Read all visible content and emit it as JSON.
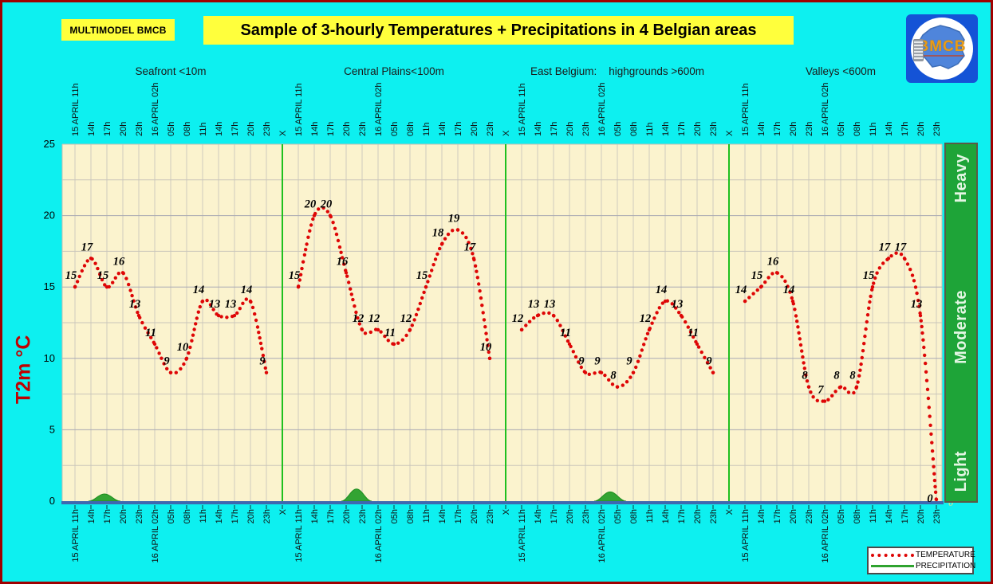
{
  "header": {
    "model_tag": "MULTIMODEL BMCB",
    "title": "Sample of 3-hourly Temperatures + Precipitations in 4 Belgian areas",
    "logo_text": "BMCB"
  },
  "colors": {
    "background": "#0DF0F0",
    "frame_border": "#A00000",
    "banner_bg": "#FFFF3C",
    "plot_bg": "#FBF3CE",
    "temperature": "#DE0606",
    "precipitation": "#33A433",
    "panel_divider": "#1FC01F",
    "axis_line": "#3E68B0",
    "severity_bar": "#1EA438",
    "ylabel": "#C00000"
  },
  "chart_data": {
    "type": "line",
    "title": "Sample of 3-hourly Temperatures + Precipitations in 4 Belgian areas",
    "ylabel": "T2m °C",
    "ylim": [
      0,
      25
    ],
    "yticks": [
      0,
      5,
      10,
      15,
      20,
      25
    ],
    "grid": true,
    "time_labels": [
      "15 APRIL 11h",
      "14h",
      "17h",
      "20h",
      "23h",
      "16 APRIL 02h",
      "05h",
      "08h",
      "11h",
      "14h",
      "17h",
      "20h",
      "23h"
    ],
    "panel_separator_label": "X",
    "panels": [
      {
        "title": "Seafront <10m",
        "temperatures": [
          15,
          17,
          15,
          16,
          13,
          11,
          9,
          10,
          14,
          13,
          13,
          14,
          9
        ],
        "precip_hump": {
          "center": 1.85,
          "halfwidth": 1.0,
          "height": 0.5
        }
      },
      {
        "title": "Central Plains<100m",
        "temperatures": [
          15,
          20,
          20,
          16,
          12,
          12,
          11,
          12,
          15,
          18,
          19,
          17,
          10
        ],
        "precip_hump": {
          "center": 3.65,
          "halfwidth": 0.95,
          "height": 0.85
        }
      },
      {
        "title": "East Belgium:    highgrounds >600m",
        "temperatures": [
          12,
          13,
          13,
          11,
          9,
          9,
          8,
          9,
          12,
          14,
          13,
          11,
          9
        ],
        "precip_hump": {
          "center": 5.55,
          "halfwidth": 1.0,
          "height": 0.65
        }
      },
      {
        "title": "Valleys <600m",
        "temperatures": [
          14,
          15,
          16,
          14,
          8,
          7,
          8,
          8,
          15,
          17,
          17,
          13,
          0
        ],
        "precip_hump": null
      }
    ],
    "legend": [
      {
        "label": "TEMPERATURE",
        "color": "#DE0606",
        "style": "dotted"
      },
      {
        "label": "PRECIPITATION",
        "color": "#33A433",
        "style": "solid"
      }
    ],
    "right_scale": [
      "Heavy",
      "Moderate",
      "Light"
    ],
    "precip_zero_label": "0"
  }
}
